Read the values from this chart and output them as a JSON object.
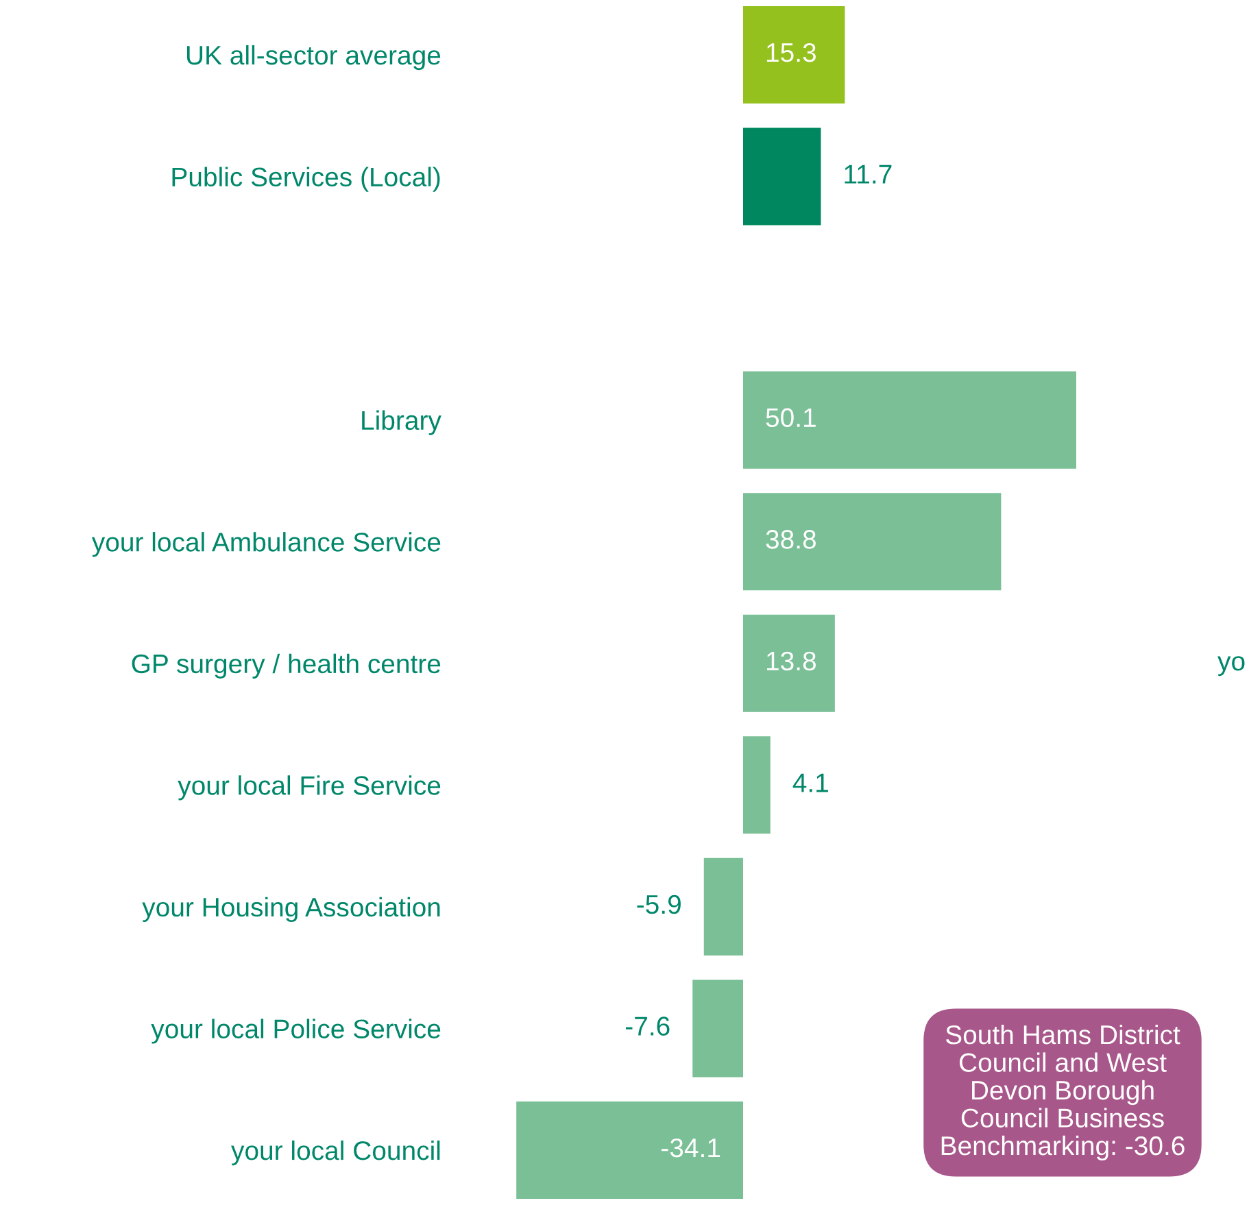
{
  "chart_data": {
    "type": "bar",
    "orientation": "horizontal",
    "categories": [
      "UK all-sector average",
      "Public Services (Local)",
      null,
      "Library",
      "your local Ambulance Service",
      "GP surgery / health centre",
      "your local Fire Service",
      "your Housing Association",
      "your local Police Service",
      "your local Council"
    ],
    "values": [
      15.3,
      11.7,
      null,
      50.1,
      38.8,
      13.8,
      4.1,
      -5.9,
      -7.6,
      -34.1
    ],
    "colors": [
      "#95c11f",
      "#00875f",
      null,
      "#7abf96",
      "#7abf96",
      "#7abf96",
      "#7abf96",
      "#7abf96",
      "#7abf96",
      "#7abf96"
    ],
    "data_labels": true,
    "tick_labels": "y",
    "grid": false,
    "legend": false,
    "annotations": [
      "yo",
      "South Hams District\nCouncil and West\nDevon Borough\nCouncil Business\nBenchmarking: -30.6"
    ]
  }
}
